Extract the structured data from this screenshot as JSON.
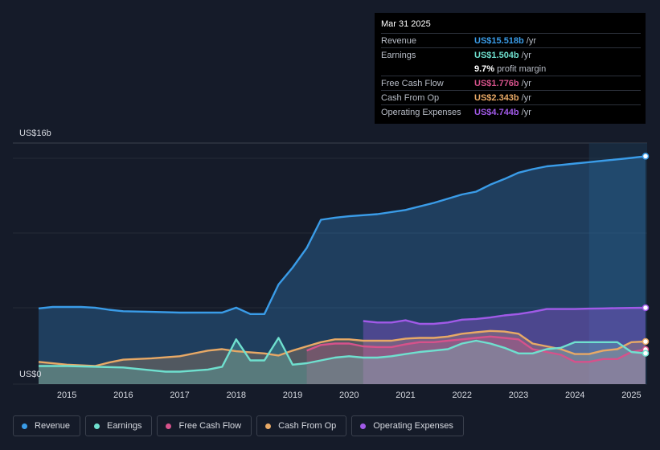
{
  "tooltip": {
    "date": "Mar 31 2025",
    "rows": [
      {
        "label": "Revenue",
        "value": "US$15.518b",
        "unit": "/yr",
        "color": "#3a9ce8"
      },
      {
        "label": "Earnings",
        "value": "US$1.504b",
        "unit": "/yr",
        "color": "#6fe0cf"
      },
      {
        "label": "",
        "value": "9.7%",
        "unit": "profit margin",
        "color": "#ffffff"
      },
      {
        "label": "Free Cash Flow",
        "value": "US$1.776b",
        "unit": "/yr",
        "color": "#d6528b"
      },
      {
        "label": "Cash From Op",
        "value": "US$2.343b",
        "unit": "/yr",
        "color": "#e8a966"
      },
      {
        "label": "Operating Expenses",
        "value": "US$4.744b",
        "unit": "/yr",
        "color": "#a15ae8"
      }
    ]
  },
  "legend": [
    {
      "label": "Revenue",
      "color": "#3a9ce8"
    },
    {
      "label": "Earnings",
      "color": "#6fe0cf"
    },
    {
      "label": "Free Cash Flow",
      "color": "#d6528b"
    },
    {
      "label": "Cash From Op",
      "color": "#e8a966"
    },
    {
      "label": "Operating Expenses",
      "color": "#a15ae8"
    }
  ],
  "chart_data": {
    "type": "area",
    "title": "",
    "ylabel_top": "US$16b",
    "ylabel_bottom": "US$0",
    "ylim": [
      0,
      16
    ],
    "xlim": [
      2014.5,
      2025.25
    ],
    "x_ticks": [
      2015,
      2016,
      2017,
      2018,
      2019,
      2020,
      2021,
      2022,
      2023,
      2024,
      2025
    ],
    "x_tick_labels": [
      "2015",
      "2016",
      "2017",
      "2018",
      "2019",
      "2020",
      "2021",
      "2022",
      "2023",
      "2024",
      "2025"
    ],
    "highlight_start": 2024.25,
    "series": [
      {
        "name": "Revenue",
        "color": "#3a9ce8",
        "points": [
          [
            2014.5,
            4.7
          ],
          [
            2014.75,
            4.8
          ],
          [
            2015.0,
            4.8
          ],
          [
            2015.25,
            4.8
          ],
          [
            2015.5,
            4.75
          ],
          [
            2015.75,
            4.6
          ],
          [
            2016.0,
            4.5
          ],
          [
            2016.5,
            4.45
          ],
          [
            2017.0,
            4.4
          ],
          [
            2017.5,
            4.4
          ],
          [
            2017.75,
            4.4
          ],
          [
            2018.0,
            4.75
          ],
          [
            2018.25,
            4.3
          ],
          [
            2018.5,
            4.3
          ],
          [
            2018.75,
            6.4
          ],
          [
            2019.0,
            7.6
          ],
          [
            2019.25,
            9.0
          ],
          [
            2019.5,
            11.0
          ],
          [
            2019.75,
            11.15
          ],
          [
            2020.0,
            11.25
          ],
          [
            2020.5,
            11.4
          ],
          [
            2021.0,
            11.7
          ],
          [
            2021.5,
            12.2
          ],
          [
            2022.0,
            12.8
          ],
          [
            2022.25,
            13.0
          ],
          [
            2022.5,
            13.5
          ],
          [
            2022.75,
            13.9
          ],
          [
            2023.0,
            14.35
          ],
          [
            2023.25,
            14.6
          ],
          [
            2023.5,
            14.8
          ],
          [
            2023.75,
            14.9
          ],
          [
            2024.0,
            15.0
          ],
          [
            2024.25,
            15.1
          ],
          [
            2024.5,
            15.2
          ],
          [
            2024.75,
            15.3
          ],
          [
            2025.0,
            15.4
          ],
          [
            2025.25,
            15.518
          ]
        ]
      },
      {
        "name": "Operating Expenses",
        "color": "#a15ae8",
        "points": [
          [
            2020.25,
            3.8
          ],
          [
            2020.5,
            3.7
          ],
          [
            2020.75,
            3.7
          ],
          [
            2021.0,
            3.85
          ],
          [
            2021.25,
            3.6
          ],
          [
            2021.5,
            3.6
          ],
          [
            2021.75,
            3.7
          ],
          [
            2022.0,
            3.9
          ],
          [
            2022.25,
            3.95
          ],
          [
            2022.5,
            4.05
          ],
          [
            2022.75,
            4.2
          ],
          [
            2023.0,
            4.3
          ],
          [
            2023.25,
            4.45
          ],
          [
            2023.5,
            4.65
          ],
          [
            2023.75,
            4.65
          ],
          [
            2024.0,
            4.65
          ],
          [
            2024.25,
            4.68
          ],
          [
            2024.5,
            4.7
          ],
          [
            2024.75,
            4.72
          ],
          [
            2025.0,
            4.73
          ],
          [
            2025.25,
            4.744
          ]
        ]
      },
      {
        "name": "Cash From Op",
        "color": "#e8a966",
        "points": [
          [
            2014.5,
            0.9
          ],
          [
            2015.0,
            0.7
          ],
          [
            2015.5,
            0.6
          ],
          [
            2015.75,
            0.85
          ],
          [
            2016.0,
            1.05
          ],
          [
            2016.5,
            1.15
          ],
          [
            2017.0,
            1.3
          ],
          [
            2017.5,
            1.7
          ],
          [
            2017.75,
            1.8
          ],
          [
            2018.0,
            1.65
          ],
          [
            2018.5,
            1.5
          ],
          [
            2018.75,
            1.35
          ],
          [
            2019.0,
            1.7
          ],
          [
            2019.25,
            2.0
          ],
          [
            2019.5,
            2.3
          ],
          [
            2019.75,
            2.5
          ],
          [
            2020.0,
            2.5
          ],
          [
            2020.25,
            2.4
          ],
          [
            2020.5,
            2.4
          ],
          [
            2020.75,
            2.4
          ],
          [
            2021.0,
            2.55
          ],
          [
            2021.25,
            2.6
          ],
          [
            2021.5,
            2.6
          ],
          [
            2021.75,
            2.7
          ],
          [
            2022.0,
            2.9
          ],
          [
            2022.25,
            3.0
          ],
          [
            2022.5,
            3.1
          ],
          [
            2022.75,
            3.05
          ],
          [
            2023.0,
            2.9
          ],
          [
            2023.25,
            2.2
          ],
          [
            2023.5,
            2.0
          ],
          [
            2023.75,
            1.8
          ],
          [
            2024.0,
            1.45
          ],
          [
            2024.25,
            1.45
          ],
          [
            2024.5,
            1.7
          ],
          [
            2024.75,
            1.8
          ],
          [
            2025.0,
            2.3
          ],
          [
            2025.25,
            2.343
          ]
        ]
      },
      {
        "name": "Free Cash Flow",
        "color": "#d6528b",
        "points": [
          [
            2019.25,
            1.7
          ],
          [
            2019.5,
            2.1
          ],
          [
            2019.75,
            2.2
          ],
          [
            2020.0,
            2.2
          ],
          [
            2020.25,
            2.0
          ],
          [
            2020.5,
            1.95
          ],
          [
            2020.75,
            1.95
          ],
          [
            2021.0,
            2.15
          ],
          [
            2021.25,
            2.3
          ],
          [
            2021.5,
            2.3
          ],
          [
            2021.75,
            2.4
          ],
          [
            2022.0,
            2.5
          ],
          [
            2022.25,
            2.6
          ],
          [
            2022.5,
            2.7
          ],
          [
            2022.75,
            2.6
          ],
          [
            2023.0,
            2.5
          ],
          [
            2023.25,
            1.8
          ],
          [
            2023.5,
            1.6
          ],
          [
            2023.75,
            1.4
          ],
          [
            2024.0,
            0.9
          ],
          [
            2024.25,
            0.9
          ],
          [
            2024.5,
            1.1
          ],
          [
            2024.75,
            1.1
          ],
          [
            2025.0,
            1.6
          ],
          [
            2025.25,
            1.776
          ]
        ]
      },
      {
        "name": "Earnings",
        "color": "#6fe0cf",
        "points": [
          [
            2014.5,
            0.6
          ],
          [
            2014.75,
            0.6
          ],
          [
            2015.0,
            0.6
          ],
          [
            2015.5,
            0.55
          ],
          [
            2016.0,
            0.5
          ],
          [
            2016.5,
            0.3
          ],
          [
            2016.75,
            0.2
          ],
          [
            2017.0,
            0.2
          ],
          [
            2017.5,
            0.35
          ],
          [
            2017.75,
            0.55
          ],
          [
            2018.0,
            2.5
          ],
          [
            2018.25,
            1.0
          ],
          [
            2018.5,
            1.0
          ],
          [
            2018.75,
            2.6
          ],
          [
            2019.0,
            0.7
          ],
          [
            2019.25,
            0.8
          ],
          [
            2019.5,
            1.0
          ],
          [
            2019.75,
            1.2
          ],
          [
            2020.0,
            1.3
          ],
          [
            2020.25,
            1.2
          ],
          [
            2020.5,
            1.2
          ],
          [
            2020.75,
            1.3
          ],
          [
            2021.0,
            1.45
          ],
          [
            2021.25,
            1.6
          ],
          [
            2021.5,
            1.7
          ],
          [
            2021.75,
            1.8
          ],
          [
            2022.0,
            2.2
          ],
          [
            2022.25,
            2.4
          ],
          [
            2022.5,
            2.2
          ],
          [
            2022.75,
            1.9
          ],
          [
            2023.0,
            1.5
          ],
          [
            2023.25,
            1.5
          ],
          [
            2023.5,
            1.8
          ],
          [
            2023.75,
            1.9
          ],
          [
            2024.0,
            2.3
          ],
          [
            2024.25,
            2.3
          ],
          [
            2024.5,
            2.3
          ],
          [
            2024.75,
            2.3
          ],
          [
            2025.0,
            1.6
          ],
          [
            2025.25,
            1.504
          ]
        ]
      }
    ]
  }
}
